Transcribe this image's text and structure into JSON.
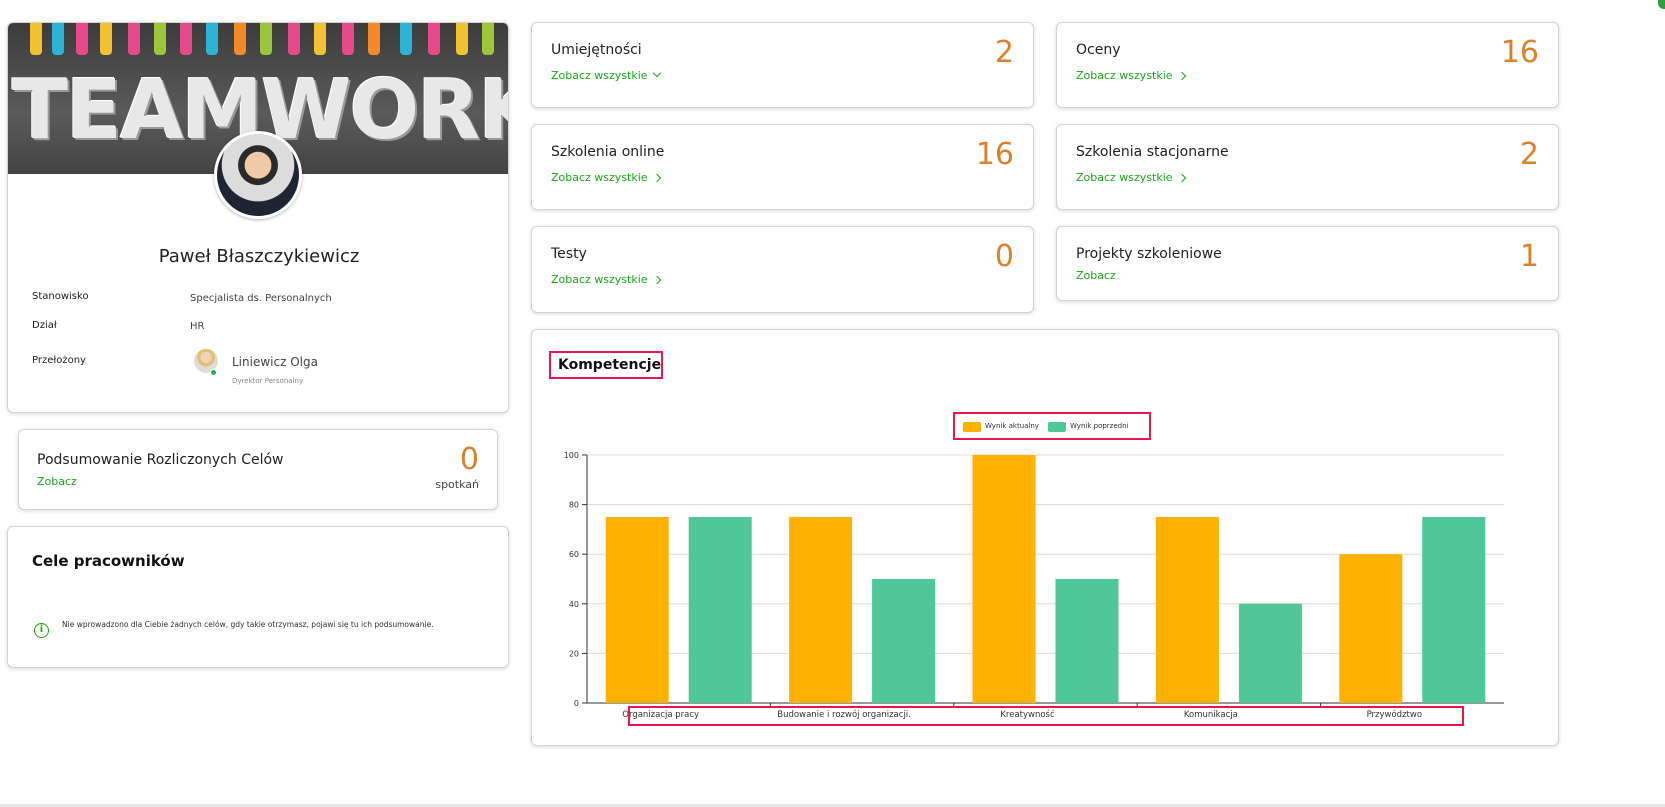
{
  "profile": {
    "banner_text": "TEAMWORK",
    "name": "Paweł Błaszczykiewicz",
    "fields": {
      "position_label": "Stanowisko",
      "position_value": "Specjalista ds. Personalnych",
      "department_label": "Dział",
      "department_value": "HR",
      "supervisor_label": "Przełożony",
      "supervisor_name": "Liniewicz Olga",
      "supervisor_role": "Dyrektor Personalny"
    }
  },
  "summary": {
    "title": "Podsumowanie Rozliczonych Celów",
    "link": "Zobacz",
    "count": "0",
    "unit": "spotkań"
  },
  "goals": {
    "title": "Cele pracowników",
    "message": "Nie wprowadzono dla Ciebie żadnych celów, gdy takie otrzymasz, pojawi się tu ich podsumowanie.",
    "info_icon": "info-icon"
  },
  "stats": {
    "skills": {
      "label": "Umiejętności",
      "link": "Zobacz wszystkie",
      "count": "2",
      "link_icon": "chevron-down-icon"
    },
    "grades": {
      "label": "Oceny",
      "link": "Zobacz wszystkie",
      "count": "16",
      "link_icon": "chevron-right-icon"
    },
    "online": {
      "label": "Szkolenia online",
      "link": "Zobacz wszystkie",
      "count": "16",
      "link_icon": "chevron-right-icon"
    },
    "stationary": {
      "label": "Szkolenia stacjonarne",
      "link": "Zobacz wszystkie",
      "count": "2",
      "link_icon": "chevron-right-icon"
    },
    "tests": {
      "label": "Testy",
      "link": "Zobacz wszystkie",
      "count": "0",
      "link_icon": "chevron-right-icon"
    },
    "projects": {
      "label": "Projekty szkoleniowe",
      "link": "Zobacz",
      "count": "1"
    }
  },
  "colors": {
    "accent_green": "#18a618",
    "count_orange": "#d9822b",
    "series_current": "#ffb100",
    "series_previous": "#4fc797",
    "highlight": "#e4184e"
  },
  "chart_data": {
    "type": "bar",
    "title": "Kompetencje",
    "categories": [
      "Organizacja pracy",
      "Budowanie i rozwój organizacji.",
      "Kreatywność",
      "Komunikacja",
      "Przywództwo"
    ],
    "series": [
      {
        "name": "Wynik aktualny",
        "values": [
          75,
          75,
          100,
          75,
          60
        ],
        "color": "#ffb100"
      },
      {
        "name": "Wynik poprzedni",
        "values": [
          75,
          50,
          50,
          40,
          75
        ],
        "color": "#4fc797"
      }
    ],
    "yticks": [
      "0",
      "20",
      "40",
      "60",
      "80",
      "100"
    ],
    "ylim": [
      0,
      100
    ],
    "grid": true,
    "legend": "top-center"
  }
}
